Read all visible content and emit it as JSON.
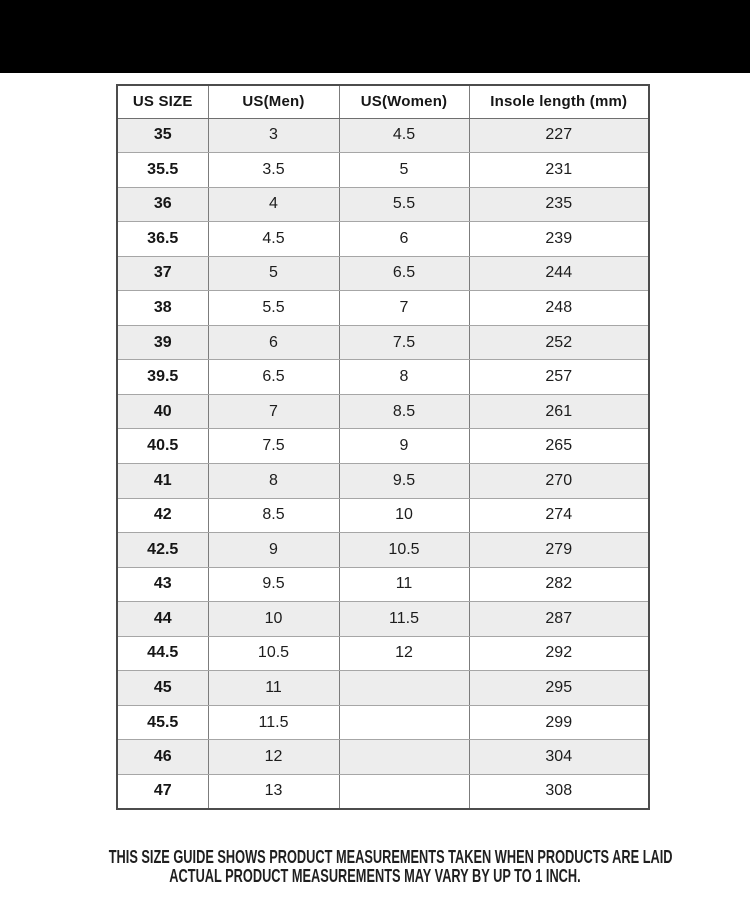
{
  "style": {
    "top_bar_color": "#000000",
    "alt_row_color": "#ededed",
    "outer_border_color": "#4c4c4c",
    "grid_border_color": "#7c7c7c"
  },
  "chart_data": {
    "type": "table",
    "title": "",
    "columns": [
      "US SIZE",
      "US(Men)",
      "US(Women)",
      "Insole length (mm)"
    ],
    "rows": [
      [
        "35",
        "3",
        "4.5",
        "227"
      ],
      [
        "35.5",
        "3.5",
        "5",
        "231"
      ],
      [
        "36",
        "4",
        "5.5",
        "235"
      ],
      [
        "36.5",
        "4.5",
        "6",
        "239"
      ],
      [
        "37",
        "5",
        "6.5",
        "244"
      ],
      [
        "38",
        "5.5",
        "7",
        "248"
      ],
      [
        "39",
        "6",
        "7.5",
        "252"
      ],
      [
        "39.5",
        "6.5",
        "8",
        "257"
      ],
      [
        "40",
        "7",
        "8.5",
        "261"
      ],
      [
        "40.5",
        "7.5",
        "9",
        "265"
      ],
      [
        "41",
        "8",
        "9.5",
        "270"
      ],
      [
        "42",
        "8.5",
        "10",
        "274"
      ],
      [
        "42.5",
        "9",
        "10.5",
        "279"
      ],
      [
        "43",
        "9.5",
        "11",
        "282"
      ],
      [
        "44",
        "10",
        "11.5",
        "287"
      ],
      [
        "44.5",
        "10.5",
        "12",
        "292"
      ],
      [
        "45",
        "11",
        "",
        "295"
      ],
      [
        "45.5",
        "11.5",
        "",
        "299"
      ],
      [
        "46",
        "12",
        "",
        "304"
      ],
      [
        "47",
        "13",
        "",
        "308"
      ]
    ],
    "annotations": [
      "THIS SIZE GUIDE SHOWS PRODUCT MEASUREMENTS TAKEN WHEN PRODUCTS ARE LAID",
      "ACTUAL PRODUCT MEASUREMENTS MAY VARY BY UP TO 1 INCH."
    ],
    "layout_hints": {
      "alternating_rows_start": "first data row shaded",
      "grid": "on",
      "header_background": "#ffffff"
    }
  }
}
